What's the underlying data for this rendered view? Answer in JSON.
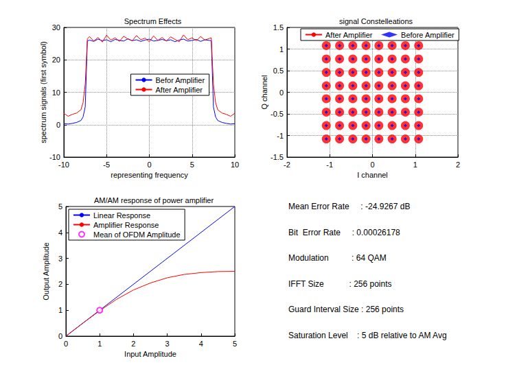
{
  "chart_data": [
    {
      "type": "line",
      "title": "Spectrum Effects",
      "x_label": "representing frequency",
      "y_label": "spectrum signals (first symbol)",
      "x": [
        -10,
        -9.5,
        -9,
        -8.5,
        -8,
        -7.75,
        -7.5,
        -7.25,
        -7,
        -6.5,
        -6,
        -5.5,
        -5,
        -4.5,
        -4,
        -3.5,
        -3,
        -2.5,
        -2,
        -1.5,
        -1,
        -0.5,
        0,
        0.5,
        1,
        1.5,
        2,
        2.5,
        3,
        3.5,
        4,
        4.5,
        5,
        5.5,
        6,
        6.5,
        7,
        7.25,
        7.5,
        7.75,
        8,
        8.5,
        9,
        9.5,
        10
      ],
      "series": [
        {
          "name": "Befor Amplifier",
          "color": "#0000ff",
          "values": [
            0.3,
            0.2,
            0.4,
            0.7,
            1.3,
            2.4,
            5.5,
            25.8,
            26.1,
            25.7,
            26.4,
            25.9,
            26.2,
            25.6,
            26.3,
            26.0,
            25.8,
            26.5,
            25.9,
            26.2,
            25.7,
            26.1,
            26.4,
            25.8,
            26.0,
            26.3,
            25.9,
            26.2,
            25.6,
            26.1,
            26.4,
            25.8,
            26.0,
            26.3,
            25.7,
            26.2,
            26.0,
            25.9,
            5.5,
            2.4,
            1.3,
            0.7,
            0.4,
            0.2,
            0.3
          ]
        },
        {
          "name": "After Amplifier",
          "color": "#ff0000",
          "values": [
            3.5,
            2.6,
            3.2,
            3.6,
            4.6,
            6.8,
            12.5,
            26.5,
            27.2,
            25.8,
            26.9,
            25.5,
            27.6,
            26.1,
            26.8,
            25.7,
            27.3,
            26.4,
            25.9,
            27.5,
            26.2,
            26.7,
            25.6,
            27.4,
            26.0,
            26.9,
            25.8,
            27.1,
            26.3,
            25.6,
            27.7,
            26.2,
            26.8,
            25.9,
            27.2,
            26.1,
            26.6,
            26.8,
            12.5,
            6.8,
            4.6,
            3.6,
            3.2,
            2.6,
            3.5
          ]
        }
      ],
      "xlim": [
        -10,
        10
      ],
      "xticks": [
        -10,
        -5,
        0,
        5,
        10
      ],
      "ylim": [
        -10,
        30
      ],
      "yticks": [
        -10,
        0,
        10,
        20,
        30
      ],
      "grid": true,
      "legend": "right"
    },
    {
      "type": "scatter",
      "title": "signal Constelleations",
      "x_label": "I channel",
      "y_label": "Q channel",
      "series": [
        {
          "name": "After Amplifier",
          "color": "#ff0000",
          "marker": "cloud",
          "points": [
            [
              -1.08,
              1.08
            ],
            [
              -0.77,
              1.08
            ],
            [
              -0.46,
              1.08
            ],
            [
              -0.15,
              1.08
            ],
            [
              0.15,
              1.08
            ],
            [
              0.46,
              1.08
            ],
            [
              0.77,
              1.08
            ],
            [
              1.08,
              1.08
            ],
            [
              -1.08,
              0.77
            ],
            [
              -0.77,
              0.77
            ],
            [
              -0.46,
              0.77
            ],
            [
              -0.15,
              0.77
            ],
            [
              0.15,
              0.77
            ],
            [
              0.46,
              0.77
            ],
            [
              0.77,
              0.77
            ],
            [
              1.08,
              0.77
            ],
            [
              -1.08,
              0.46
            ],
            [
              -0.77,
              0.46
            ],
            [
              -0.46,
              0.46
            ],
            [
              -0.15,
              0.46
            ],
            [
              0.15,
              0.46
            ],
            [
              0.46,
              0.46
            ],
            [
              0.77,
              0.46
            ],
            [
              1.08,
              0.46
            ],
            [
              -1.08,
              0.15
            ],
            [
              -0.77,
              0.15
            ],
            [
              -0.46,
              0.15
            ],
            [
              -0.15,
              0.15
            ],
            [
              0.15,
              0.15
            ],
            [
              0.46,
              0.15
            ],
            [
              0.77,
              0.15
            ],
            [
              1.08,
              0.15
            ],
            [
              -1.08,
              -0.15
            ],
            [
              -0.77,
              -0.15
            ],
            [
              -0.46,
              -0.15
            ],
            [
              -0.15,
              -0.15
            ],
            [
              0.15,
              -0.15
            ],
            [
              0.46,
              -0.15
            ],
            [
              0.77,
              -0.15
            ],
            [
              1.08,
              -0.15
            ],
            [
              -1.08,
              -0.46
            ],
            [
              -0.77,
              -0.46
            ],
            [
              -0.46,
              -0.46
            ],
            [
              -0.15,
              -0.46
            ],
            [
              0.15,
              -0.46
            ],
            [
              0.46,
              -0.46
            ],
            [
              0.77,
              -0.46
            ],
            [
              1.08,
              -0.46
            ],
            [
              -1.08,
              -0.77
            ],
            [
              -0.77,
              -0.77
            ],
            [
              -0.46,
              -0.77
            ],
            [
              -0.15,
              -0.77
            ],
            [
              0.15,
              -0.77
            ],
            [
              0.46,
              -0.77
            ],
            [
              0.77,
              -0.77
            ],
            [
              1.08,
              -0.77
            ],
            [
              -1.08,
              -1.08
            ],
            [
              -0.77,
              -1.08
            ],
            [
              -0.46,
              -1.08
            ],
            [
              -0.15,
              -1.08
            ],
            [
              0.15,
              -1.08
            ],
            [
              0.46,
              -1.08
            ],
            [
              0.77,
              -1.08
            ],
            [
              1.08,
              -1.08
            ]
          ]
        },
        {
          "name": "Before Amplifier",
          "color": "#0000ff",
          "marker": "diamond",
          "points": [
            [
              -1.08,
              1.08
            ],
            [
              -0.77,
              1.08
            ],
            [
              -0.46,
              1.08
            ],
            [
              -0.15,
              1.08
            ],
            [
              0.15,
              1.08
            ],
            [
              0.46,
              1.08
            ],
            [
              0.77,
              1.08
            ],
            [
              1.08,
              1.08
            ],
            [
              -1.08,
              0.77
            ],
            [
              -0.77,
              0.77
            ],
            [
              -0.46,
              0.77
            ],
            [
              -0.15,
              0.77
            ],
            [
              0.15,
              0.77
            ],
            [
              0.46,
              0.77
            ],
            [
              0.77,
              0.77
            ],
            [
              1.08,
              0.77
            ],
            [
              -1.08,
              0.46
            ],
            [
              -0.77,
              0.46
            ],
            [
              -0.46,
              0.46
            ],
            [
              -0.15,
              0.46
            ],
            [
              0.15,
              0.46
            ],
            [
              0.46,
              0.46
            ],
            [
              0.77,
              0.46
            ],
            [
              1.08,
              0.46
            ],
            [
              -1.08,
              0.15
            ],
            [
              -0.77,
              0.15
            ],
            [
              -0.46,
              0.15
            ],
            [
              -0.15,
              0.15
            ],
            [
              0.15,
              0.15
            ],
            [
              0.46,
              0.15
            ],
            [
              0.77,
              0.15
            ],
            [
              1.08,
              0.15
            ],
            [
              -1.08,
              -0.15
            ],
            [
              -0.77,
              -0.15
            ],
            [
              -0.46,
              -0.15
            ],
            [
              -0.15,
              -0.15
            ],
            [
              0.15,
              -0.15
            ],
            [
              0.46,
              -0.15
            ],
            [
              0.77,
              -0.15
            ],
            [
              1.08,
              -0.15
            ],
            [
              -1.08,
              -0.46
            ],
            [
              -0.77,
              -0.46
            ],
            [
              -0.46,
              -0.46
            ],
            [
              -0.15,
              -0.46
            ],
            [
              0.15,
              -0.46
            ],
            [
              0.46,
              -0.46
            ],
            [
              0.77,
              -0.46
            ],
            [
              1.08,
              -0.46
            ],
            [
              -1.08,
              -0.77
            ],
            [
              -0.77,
              -0.77
            ],
            [
              -0.46,
              -0.77
            ],
            [
              -0.15,
              -0.77
            ],
            [
              0.15,
              -0.77
            ],
            [
              0.46,
              -0.77
            ],
            [
              0.77,
              -0.77
            ],
            [
              1.08,
              -0.77
            ],
            [
              -1.08,
              -1.08
            ],
            [
              -0.77,
              -1.08
            ],
            [
              -0.46,
              -1.08
            ],
            [
              -0.15,
              -1.08
            ],
            [
              0.15,
              -1.08
            ],
            [
              0.46,
              -1.08
            ],
            [
              0.77,
              -1.08
            ],
            [
              1.08,
              -1.08
            ]
          ]
        }
      ],
      "xlim": [
        -2,
        2
      ],
      "xticks": [
        -2,
        -1,
        0,
        1,
        2
      ],
      "ylim": [
        -1.5,
        1.5
      ],
      "yticks": [
        -1.5,
        -1,
        -0.5,
        0,
        0.5,
        1,
        1.5
      ],
      "grid": true,
      "legend": "top"
    },
    {
      "type": "line",
      "title": "AM/AM response of power amplifier",
      "x_label": "Input Amplitude",
      "y_label": "Output Amplitude",
      "series": [
        {
          "name": "Linear Response",
          "color": "#0000ff",
          "x": [
            0,
            5
          ],
          "values": [
            0,
            5
          ]
        },
        {
          "name": "Amplifier Response",
          "color": "#ff0000",
          "x": [
            0,
            0.5,
            1,
            1.5,
            2,
            2.5,
            3,
            3.5,
            4,
            4.5,
            5
          ],
          "values": [
            0,
            0.5,
            0.98,
            1.42,
            1.78,
            2.05,
            2.25,
            2.38,
            2.45,
            2.49,
            2.5
          ]
        },
        {
          "name": "Mean of OFDM Amplitude",
          "color": "#ff00ff",
          "type": "scatter",
          "marker": "circle",
          "x": [
            1
          ],
          "values": [
            1
          ]
        }
      ],
      "xlim": [
        0,
        5
      ],
      "xticks": [
        0,
        1,
        2,
        3,
        4,
        5
      ],
      "ylim": [
        0,
        5
      ],
      "yticks": [
        0,
        1,
        2,
        3,
        4,
        5
      ],
      "grid": false,
      "legend": "top left"
    }
  ],
  "text_panel": {
    "lines": [
      "Mean Error Rate     : -24.9267 dB",
      "Bit  Error Rate     : 0.00026178",
      "Modulation          : 64 QAM",
      "IFFT Size           : 256 points",
      "Guard Interval Size : 256 points",
      "Saturation Level    : 5 dB relative to AM Avg"
    ]
  }
}
